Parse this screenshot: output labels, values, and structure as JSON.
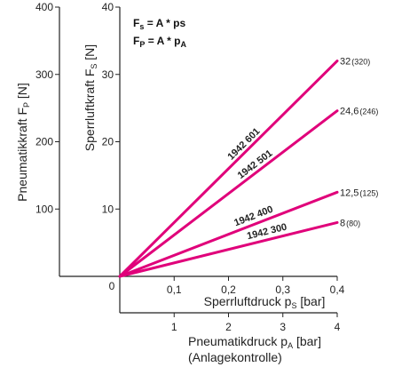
{
  "chart_data": {
    "type": "line",
    "title": "",
    "formulas": [
      {
        "main": "F",
        "sub": "s",
        "rest": " = A ",
        "op": "*",
        "var": " ps",
        "vsub": ""
      },
      {
        "main": "F",
        "sub": "P",
        "rest": " = A ",
        "op": "*",
        "var": " p",
        "vsub": "A"
      }
    ],
    "axes": {
      "y_outer": {
        "label_main": "Pneumatikkraft F",
        "label_sub": "P",
        "label_unit": " [N]",
        "ticks": [
          0,
          100,
          200,
          300,
          400
        ],
        "ylim": [
          0,
          400
        ]
      },
      "y_inner": {
        "label_main": "Sperrluftkraft F",
        "label_sub": "S",
        "label_unit": " [N]",
        "ticks": [
          10,
          20,
          30,
          40
        ],
        "ylim": [
          0,
          40
        ]
      },
      "x_inner": {
        "label_main": "Sperrluftdruck p",
        "label_sub": "S",
        "label_unit": " [bar]",
        "ticks": [
          "0,1",
          "0,2",
          "0,3",
          "0,4"
        ],
        "tick_values": [
          0.1,
          0.2,
          0.3,
          0.4
        ],
        "xlim": [
          0,
          0.4
        ]
      },
      "x_outer": {
        "label_main": "Pneumatikdruck p",
        "label_sub": "A",
        "label_unit": " [bar]",
        "label_line2": "(Anlagekontrolle)",
        "ticks": [
          "1",
          "2",
          "3",
          "4"
        ],
        "tick_values": [
          1,
          2,
          3,
          4
        ],
        "xlim": [
          0,
          4
        ]
      }
    },
    "origin_label": "0",
    "series": [
      {
        "name": "1942 601",
        "x": [
          0,
          0.4
        ],
        "y": [
          0,
          32
        ],
        "end_label": "32",
        "end_label_paren": "(320)"
      },
      {
        "name": "1942 501",
        "x": [
          0,
          0.4
        ],
        "y": [
          0,
          24.6
        ],
        "end_label": "24,6",
        "end_label_paren": "(246)"
      },
      {
        "name": "1942 400",
        "x": [
          0,
          0.4
        ],
        "y": [
          0,
          12.5
        ],
        "end_label": "12,5",
        "end_label_paren": "(125)"
      },
      {
        "name": "1942 300",
        "x": [
          0,
          0.4
        ],
        "y": [
          0,
          8
        ],
        "end_label": "8",
        "end_label_paren": "(80)"
      }
    ],
    "colors": {
      "series": "#e0007a",
      "axes": "#222222"
    },
    "grid": false
  }
}
